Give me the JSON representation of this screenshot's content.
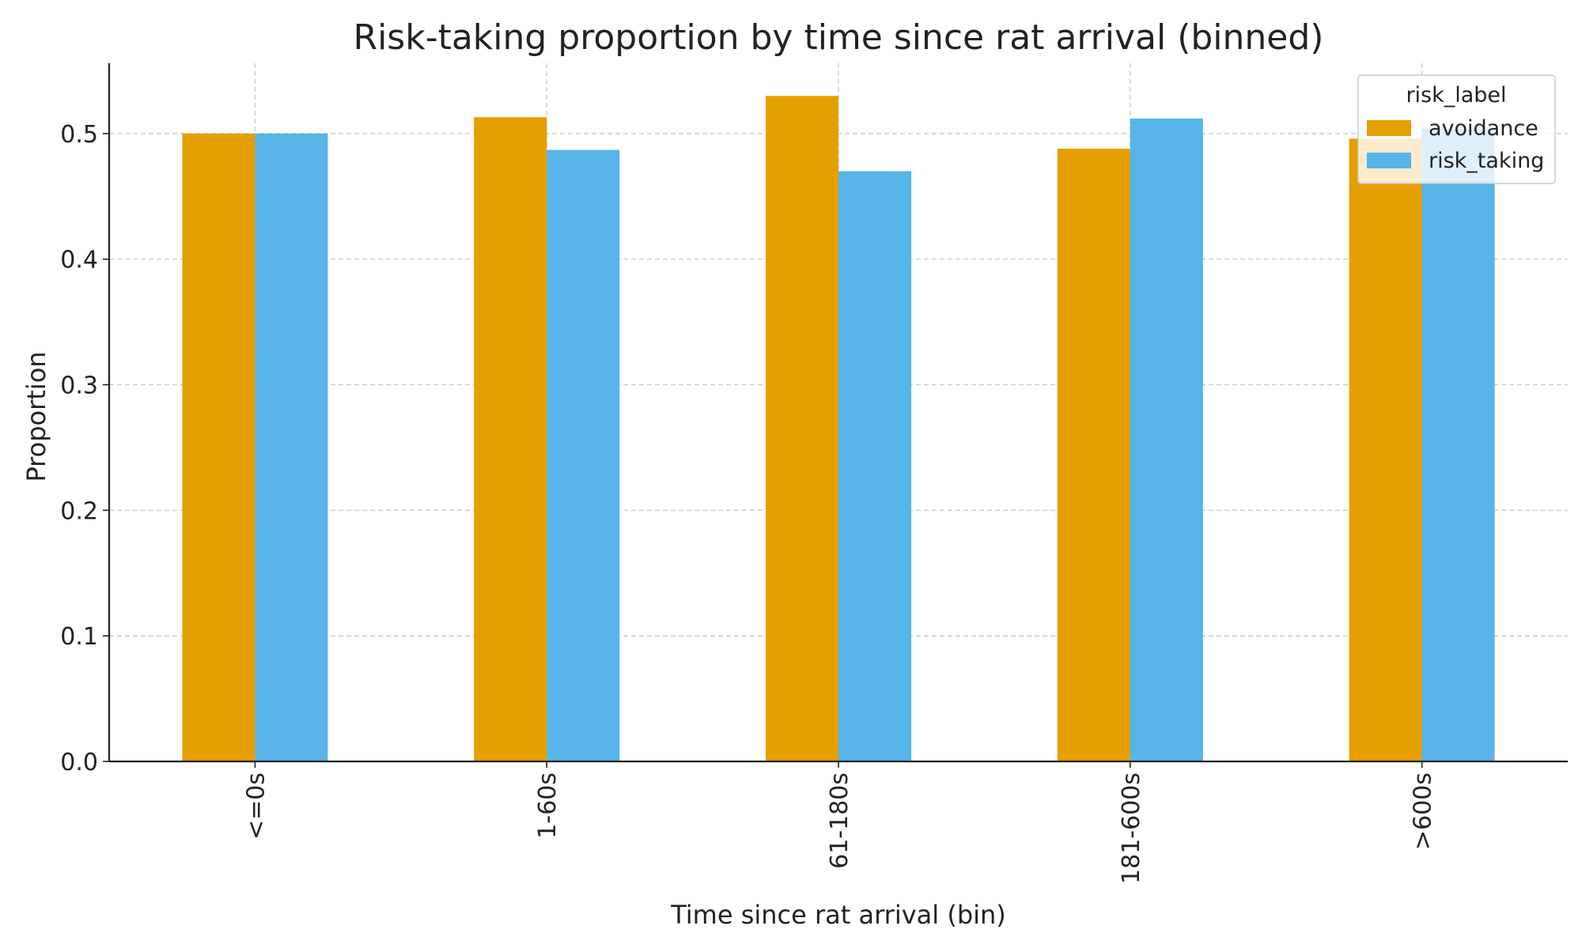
{
  "chart_data": {
    "type": "bar",
    "title": "Risk-taking proportion by time since rat arrival (binned)",
    "xlabel": "Time since rat arrival (bin)",
    "ylabel": "Proportion",
    "categories": [
      "<=0s",
      "1-60s",
      "61-180s",
      "181-600s",
      ">600s"
    ],
    "series": [
      {
        "name": "avoidance",
        "color": "#E69F00",
        "values": [
          0.5,
          0.513,
          0.53,
          0.488,
          0.496
        ]
      },
      {
        "name": "risk_taking",
        "color": "#56B4E9",
        "values": [
          0.5,
          0.487,
          0.47,
          0.512,
          0.504
        ]
      }
    ],
    "ylim": [
      0,
      0.556
    ],
    "yticks": [
      0.0,
      0.1,
      0.2,
      0.3,
      0.4,
      0.5
    ],
    "ytick_labels": [
      "0.0",
      "0.1",
      "0.2",
      "0.3",
      "0.4",
      "0.5"
    ],
    "grid": true,
    "legend": {
      "title": "risk_label",
      "placement": "top-right"
    }
  }
}
